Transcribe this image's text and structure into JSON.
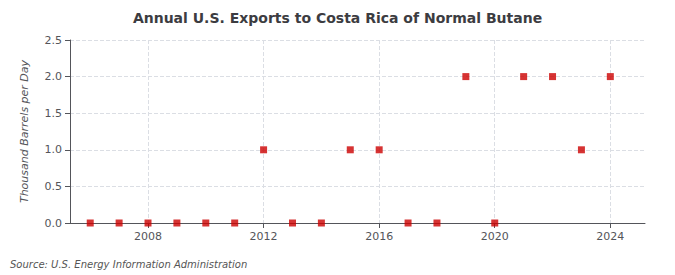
{
  "chart_data": {
    "type": "scatter",
    "title": "Annual U.S. Exports to Costa Rica of Normal Butane",
    "ylabel": "Thousand Barrels per Day",
    "annotation": "Source: U.S. Energy Information Administration",
    "x": [
      2006,
      2007,
      2008,
      2009,
      2010,
      2011,
      2012,
      2013,
      2014,
      2015,
      2016,
      2017,
      2018,
      2019,
      2020,
      2021,
      2022,
      2023,
      2024
    ],
    "values": [
      0,
      0,
      0,
      0,
      0,
      0,
      1,
      0,
      0,
      1,
      1,
      0,
      0,
      2,
      0,
      2,
      2,
      1,
      2
    ],
    "color": "#cc0000",
    "marker": "square",
    "xlim": [
      2005.3,
      2025.2
    ],
    "xticks": [
      2008,
      2012,
      2016,
      2020,
      2024
    ],
    "ylim": [
      0,
      2.5
    ],
    "yticks": [
      {
        "value": 0.0,
        "label": "0.0"
      },
      0.5,
      {
        "value": 1.0,
        "label": "1.0"
      },
      1.5,
      {
        "value": 2.0,
        "label": "2.0"
      },
      2.5
    ],
    "grid": true
  }
}
